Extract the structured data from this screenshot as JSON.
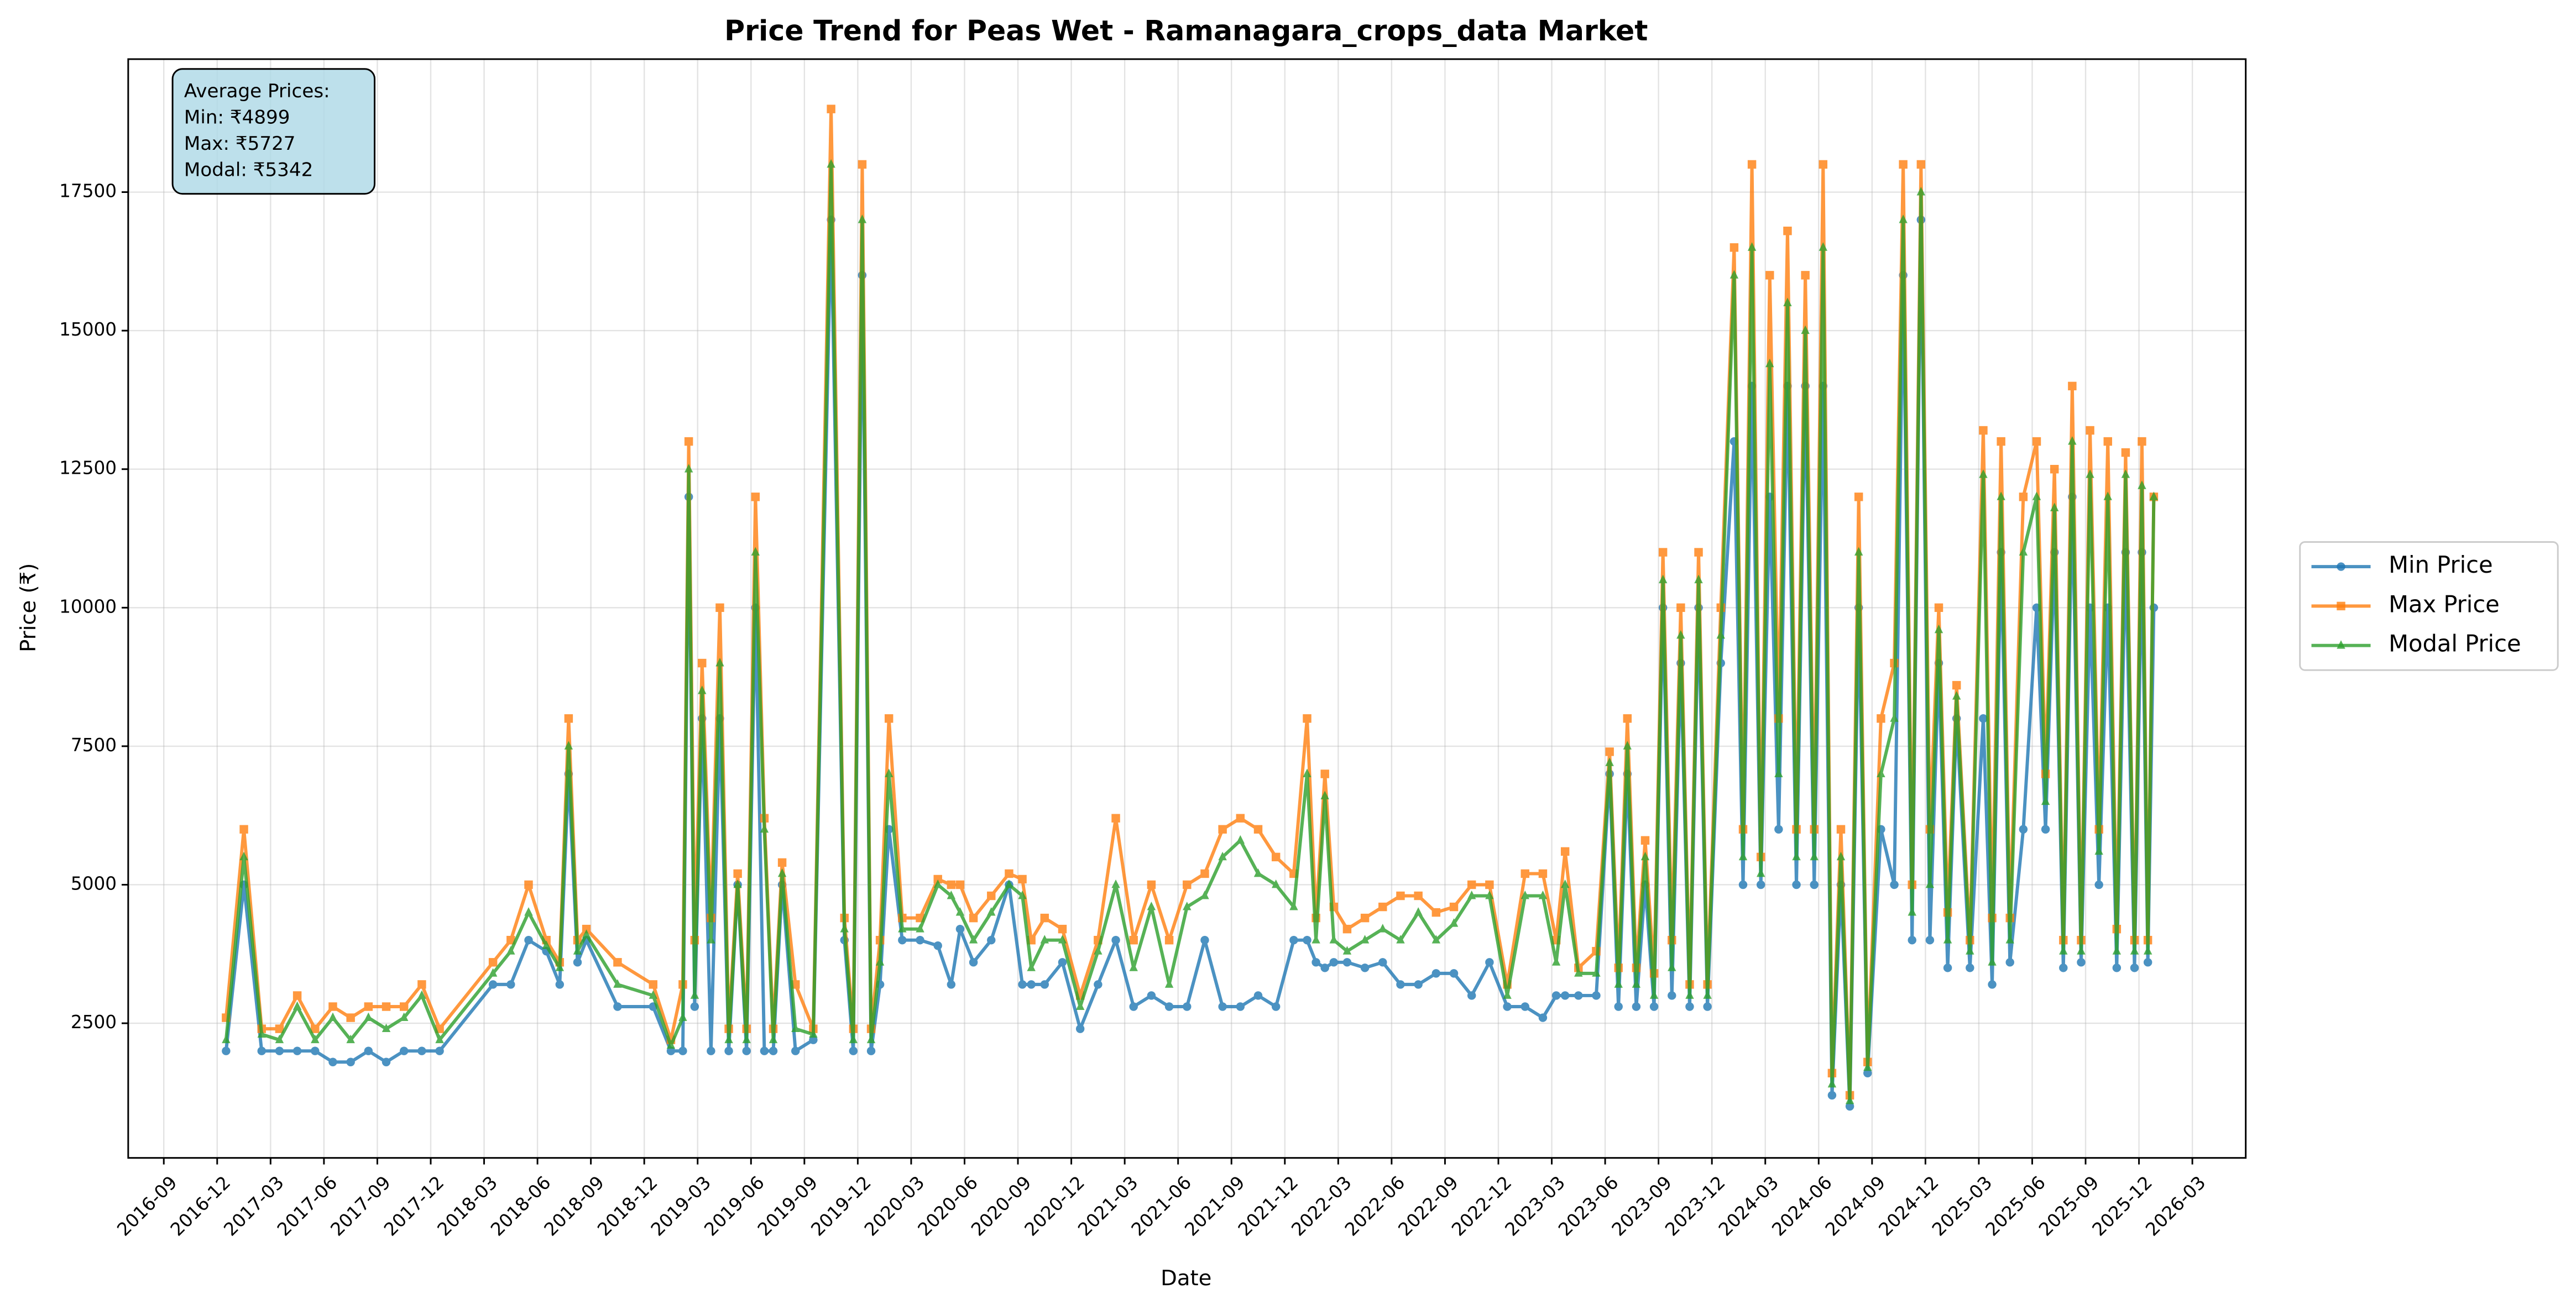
{
  "chart_data": {
    "type": "line",
    "title": "Price Trend for Peas Wet - Ramanagara_crops_data Market",
    "xlabel": "Date",
    "ylabel": "Price (₹)",
    "annotation": [
      "Average Prices:",
      "Min: ₹4899",
      "Max: ₹5727",
      "Modal: ₹5342"
    ],
    "legend": "outside right",
    "grid": true,
    "xlim": [
      "2016-07",
      "2026-06"
    ],
    "xticks": [
      "2016-09",
      "2016-12",
      "2017-03",
      "2017-06",
      "2017-09",
      "2017-12",
      "2018-03",
      "2018-06",
      "2018-09",
      "2018-12",
      "2019-03",
      "2019-06",
      "2019-09",
      "2019-12",
      "2020-03",
      "2020-06",
      "2020-09",
      "2020-12",
      "2021-03",
      "2021-06",
      "2021-09",
      "2021-12",
      "2022-03",
      "2022-06",
      "2022-09",
      "2022-12",
      "2023-03",
      "2023-06",
      "2023-09",
      "2023-12",
      "2024-03",
      "2024-06",
      "2024-09",
      "2024-12",
      "2025-03",
      "2025-06",
      "2025-09",
      "2025-12",
      "2026-03"
    ],
    "ylim": [
      70,
      19900
    ],
    "yticks": [
      2500,
      5000,
      7500,
      10000,
      12500,
      15000,
      17500
    ],
    "x": [
      "2016-12",
      "2017-01",
      "2017-02",
      "2017-03",
      "2017-04",
      "2017-05",
      "2017-06",
      "2017-07",
      "2017-08",
      "2017-09",
      "2017-10",
      "2017-11",
      "2017-12",
      "2018-03",
      "2018-04",
      "2018-05",
      "2018-06",
      "2018-07",
      "2018-07",
      "2018-08",
      "2018-08",
      "2018-10",
      "2018-12",
      "2019-01",
      "2019-02",
      "2019-02",
      "2019-02",
      "2019-03",
      "2019-03",
      "2019-04",
      "2019-04",
      "2019-05",
      "2019-05",
      "2019-06",
      "2019-06",
      "2019-07",
      "2019-07",
      "2019-08",
      "2019-09",
      "2019-10",
      "2019-11",
      "2019-11",
      "2019-12",
      "2019-12",
      "2020-01",
      "2020-01",
      "2020-02",
      "2020-03",
      "2020-04",
      "2020-05",
      "2020-05",
      "2020-06",
      "2020-07",
      "2020-08",
      "2020-09",
      "2020-09",
      "2020-10",
      "2020-11",
      "2020-12",
      "2021-01",
      "2021-02",
      "2021-03",
      "2021-04",
      "2021-05",
      "2021-06",
      "2021-07",
      "2021-08",
      "2021-09",
      "2021-10",
      "2021-11",
      "2021-12",
      "2022-01",
      "2022-01",
      "2022-02",
      "2022-02",
      "2022-03",
      "2022-04",
      "2022-05",
      "2022-06",
      "2022-07",
      "2022-08",
      "2022-09",
      "2022-10",
      "2022-11",
      "2022-12",
      "2023-01",
      "2023-02",
      "2023-03",
      "2023-03",
      "2023-04",
      "2023-05",
      "2023-06",
      "2023-06",
      "2023-07",
      "2023-07",
      "2023-08",
      "2023-08",
      "2023-09",
      "2023-09",
      "2023-10",
      "2023-10",
      "2023-11",
      "2023-11",
      "2023-12",
      "2024-01",
      "2024-01",
      "2024-02",
      "2024-02",
      "2024-03",
      "2024-03",
      "2024-04",
      "2024-04",
      "2024-05",
      "2024-05",
      "2024-06",
      "2024-06",
      "2024-07",
      "2024-07",
      "2024-08",
      "2024-08",
      "2024-09",
      "2024-10",
      "2024-10",
      "2024-11",
      "2024-11",
      "2024-12",
      "2024-12",
      "2025-01",
      "2025-01",
      "2025-02",
      "2025-03",
      "2025-03",
      "2025-04",
      "2025-04",
      "2025-05",
      "2025-06",
      "2025-06",
      "2025-07",
      "2025-07",
      "2025-08",
      "2025-08",
      "2025-09",
      "2025-09",
      "2025-10",
      "2025-10",
      "2025-11",
      "2025-11",
      "2025-12",
      "2025-12",
      "2025-12"
    ],
    "series": [
      {
        "name": "Min Price",
        "color": "#1f77b4",
        "marker": "circle",
        "values": [
          2000,
          5000,
          2000,
          2000,
          2000,
          2000,
          1800,
          1800,
          2000,
          1800,
          2000,
          2000,
          2000,
          3200,
          3200,
          4000,
          3800,
          3200,
          7000,
          3600,
          4000,
          2800,
          2800,
          2000,
          2000,
          12000,
          2800,
          8000,
          2000,
          8000,
          2000,
          5000,
          2000,
          10000,
          2000,
          2000,
          5000,
          2000,
          2200,
          17000,
          4000,
          2000,
          16000,
          2000,
          3200,
          6000,
          4000,
          4000,
          3900,
          3200,
          4200,
          3600,
          4000,
          5000,
          3200,
          3200,
          3200,
          3600,
          2400,
          3200,
          4000,
          2800,
          3000,
          2800,
          2800,
          4000,
          2800,
          2800,
          3000,
          2800,
          4000,
          4000,
          3600,
          3500,
          3600,
          3600,
          3500,
          3600,
          3200,
          3200,
          3400,
          3400,
          3000,
          3600,
          2800,
          2800,
          2600,
          3000,
          3000,
          3000,
          3000,
          7000,
          2800,
          7000,
          2800,
          5000,
          2800,
          10000,
          3000,
          9000,
          2800,
          10000,
          2800,
          9000,
          13000,
          5000,
          14000,
          5000,
          12000,
          6000,
          14000,
          5000,
          14000,
          5000,
          14000,
          1200,
          5000,
          1000,
          10000,
          1600,
          6000,
          5000,
          16000,
          4000,
          17000,
          4000,
          9000,
          3500,
          8000,
          3500,
          8000,
          3200,
          11000,
          3600,
          6000,
          10000,
          6000,
          11000,
          3500,
          12000,
          3600,
          10000,
          5000,
          10000,
          3500,
          11000,
          3500,
          11000,
          3600,
          10000
        ]
      },
      {
        "name": "Max Price",
        "color": "#ff7f0e",
        "marker": "square",
        "values": [
          2600,
          6000,
          2400,
          2400,
          3000,
          2400,
          2800,
          2600,
          2800,
          2800,
          2800,
          3200,
          2400,
          3600,
          4000,
          5000,
          4000,
          3600,
          8000,
          4000,
          4200,
          3600,
          3200,
          2200,
          3200,
          13000,
          4000,
          9000,
          4400,
          10000,
          2400,
          5200,
          2400,
          12000,
          6200,
          2400,
          5400,
          3200,
          2400,
          19000,
          4400,
          2400,
          18000,
          2400,
          4000,
          8000,
          4400,
          4400,
          5100,
          5000,
          5000,
          4400,
          4800,
          5200,
          5100,
          4000,
          4400,
          4200,
          3000,
          4000,
          6200,
          4000,
          5000,
          4000,
          5000,
          5200,
          6000,
          6200,
          6000,
          5500,
          5200,
          8000,
          4400,
          7000,
          4600,
          4200,
          4400,
          4600,
          4800,
          4800,
          4500,
          4600,
          5000,
          5000,
          3200,
          5200,
          5200,
          4000,
          5600,
          3500,
          3800,
          7400,
          3500,
          8000,
          3500,
          5800,
          3400,
          11000,
          4000,
          10000,
          3200,
          11000,
          3200,
          10000,
          16500,
          6000,
          18000,
          5500,
          16000,
          8000,
          16800,
          6000,
          16000,
          6000,
          18000,
          1600,
          6000,
          1200,
          12000,
          1800,
          8000,
          9000,
          18000,
          5000,
          18000,
          6000,
          10000,
          4500,
          8600,
          4000,
          13200,
          4400,
          13000,
          4400,
          12000,
          13000,
          7000,
          12500,
          4000,
          14000,
          4000,
          13200,
          6000,
          13000,
          4200,
          12800,
          4000,
          13000,
          4000,
          12000
        ]
      },
      {
        "name": "Modal Price",
        "color": "#2ca02c",
        "marker": "triangle",
        "values": [
          2200,
          5500,
          2300,
          2200,
          2800,
          2200,
          2600,
          2200,
          2600,
          2400,
          2600,
          3000,
          2200,
          3400,
          3800,
          4500,
          3900,
          3500,
          7500,
          3800,
          4100,
          3200,
          3000,
          2100,
          2600,
          12500,
          3000,
          8500,
          4000,
          9000,
          2200,
          5000,
          2200,
          11000,
          6000,
          2200,
          5200,
          2400,
          2300,
          18000,
          4200,
          2200,
          17000,
          2200,
          3600,
          7000,
          4200,
          4200,
          5000,
          4800,
          4500,
          4000,
          4500,
          5000,
          4800,
          3500,
          4000,
          4000,
          2800,
          3800,
          5000,
          3500,
          4600,
          3200,
          4600,
          4800,
          5500,
          5800,
          5200,
          5000,
          4600,
          7000,
          4000,
          6600,
          4000,
          3800,
          4000,
          4200,
          4000,
          4500,
          4000,
          4300,
          4800,
          4800,
          3000,
          4800,
          4800,
          3600,
          5000,
          3400,
          3400,
          7200,
          3200,
          7500,
          3200,
          5500,
          3000,
          10500,
          3500,
          9500,
          3000,
          10500,
          3000,
          9500,
          16000,
          5500,
          16500,
          5200,
          14400,
          7000,
          15500,
          5500,
          15000,
          5500,
          16500,
          1400,
          5500,
          1100,
          11000,
          1700,
          7000,
          8000,
          17000,
          4500,
          17500,
          5000,
          9600,
          4000,
          8400,
          3800,
          12400,
          3600,
          12000,
          4000,
          11000,
          12000,
          6500,
          11800,
          3800,
          13000,
          3800,
          12400,
          5600,
          12000,
          3800,
          12400,
          3800,
          12200,
          3800,
          12000
        ]
      }
    ]
  }
}
